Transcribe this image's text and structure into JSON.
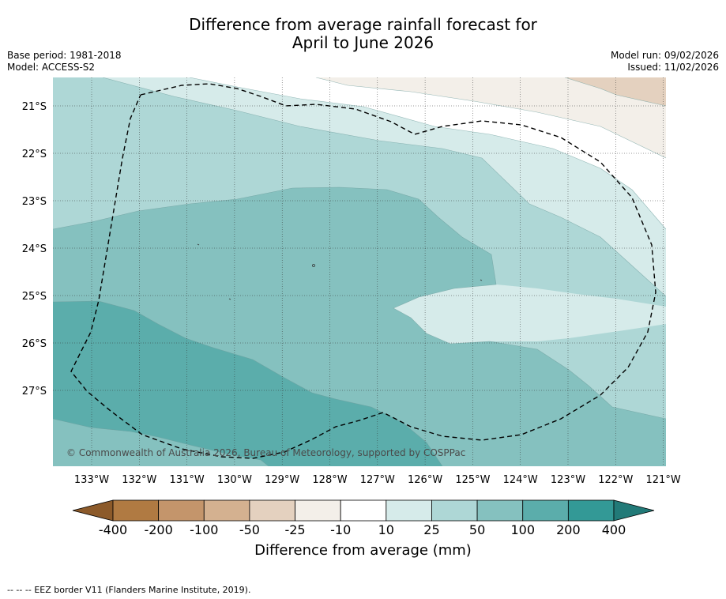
{
  "title": {
    "line1": "Difference from average rainfall forecast for",
    "line2": "April to June 2026"
  },
  "meta": {
    "base_period": "Base period: 1981-2018",
    "model": "Model: ACCESS-S2",
    "model_run": "Model run: 09/02/2026",
    "issued": "Issued: 11/02/2026"
  },
  "map": {
    "lat_labels": [
      "21°S",
      "22°S",
      "23°S",
      "24°S",
      "25°S",
      "26°S",
      "27°S"
    ],
    "lon_labels": [
      "133°W",
      "132°W",
      "131°W",
      "130°W",
      "129°W",
      "128°W",
      "127°W",
      "126°W",
      "125°W",
      "124°W",
      "123°W",
      "122°W",
      "121°W"
    ],
    "copyright": "© Commonwealth of Australia 2026, Bureau of Meteorology, supported by COSPPac",
    "shading_levels": [
      {
        "range": "below -400",
        "color": "#8c5a2a"
      },
      {
        "range": "-400 to -200",
        "color": "#b07a42"
      },
      {
        "range": "-200 to -100",
        "color": "#c4956b"
      },
      {
        "range": "-100 to -50",
        "color": "#d4b190"
      },
      {
        "range": "-50 to -25",
        "color": "#e4d1bf"
      },
      {
        "range": "-25 to -10",
        "color": "#f3efe9"
      },
      {
        "range": "-10 to 10",
        "color": "#ffffff"
      },
      {
        "range": "10 to 25",
        "color": "#d6ebea"
      },
      {
        "range": "25 to 50",
        "color": "#aed7d6"
      },
      {
        "range": "50 to 100",
        "color": "#85c1bf"
      },
      {
        "range": "100 to 200",
        "color": "#5badab"
      },
      {
        "range": "200 to 400",
        "color": "#339996"
      },
      {
        "range": "above 400",
        "color": "#227a78"
      }
    ]
  },
  "colorbar": {
    "tick_labels": [
      "-400",
      "-200",
      "-100",
      "-50",
      "-25",
      "-10",
      "10",
      "25",
      "50",
      "100",
      "200",
      "400"
    ],
    "label": "Difference from average (mm)"
  },
  "footer": {
    "legend_symbol": "--  --  --",
    "legend_text": "EEZ border V11 (Flanders Marine Institute, 2019)."
  }
}
